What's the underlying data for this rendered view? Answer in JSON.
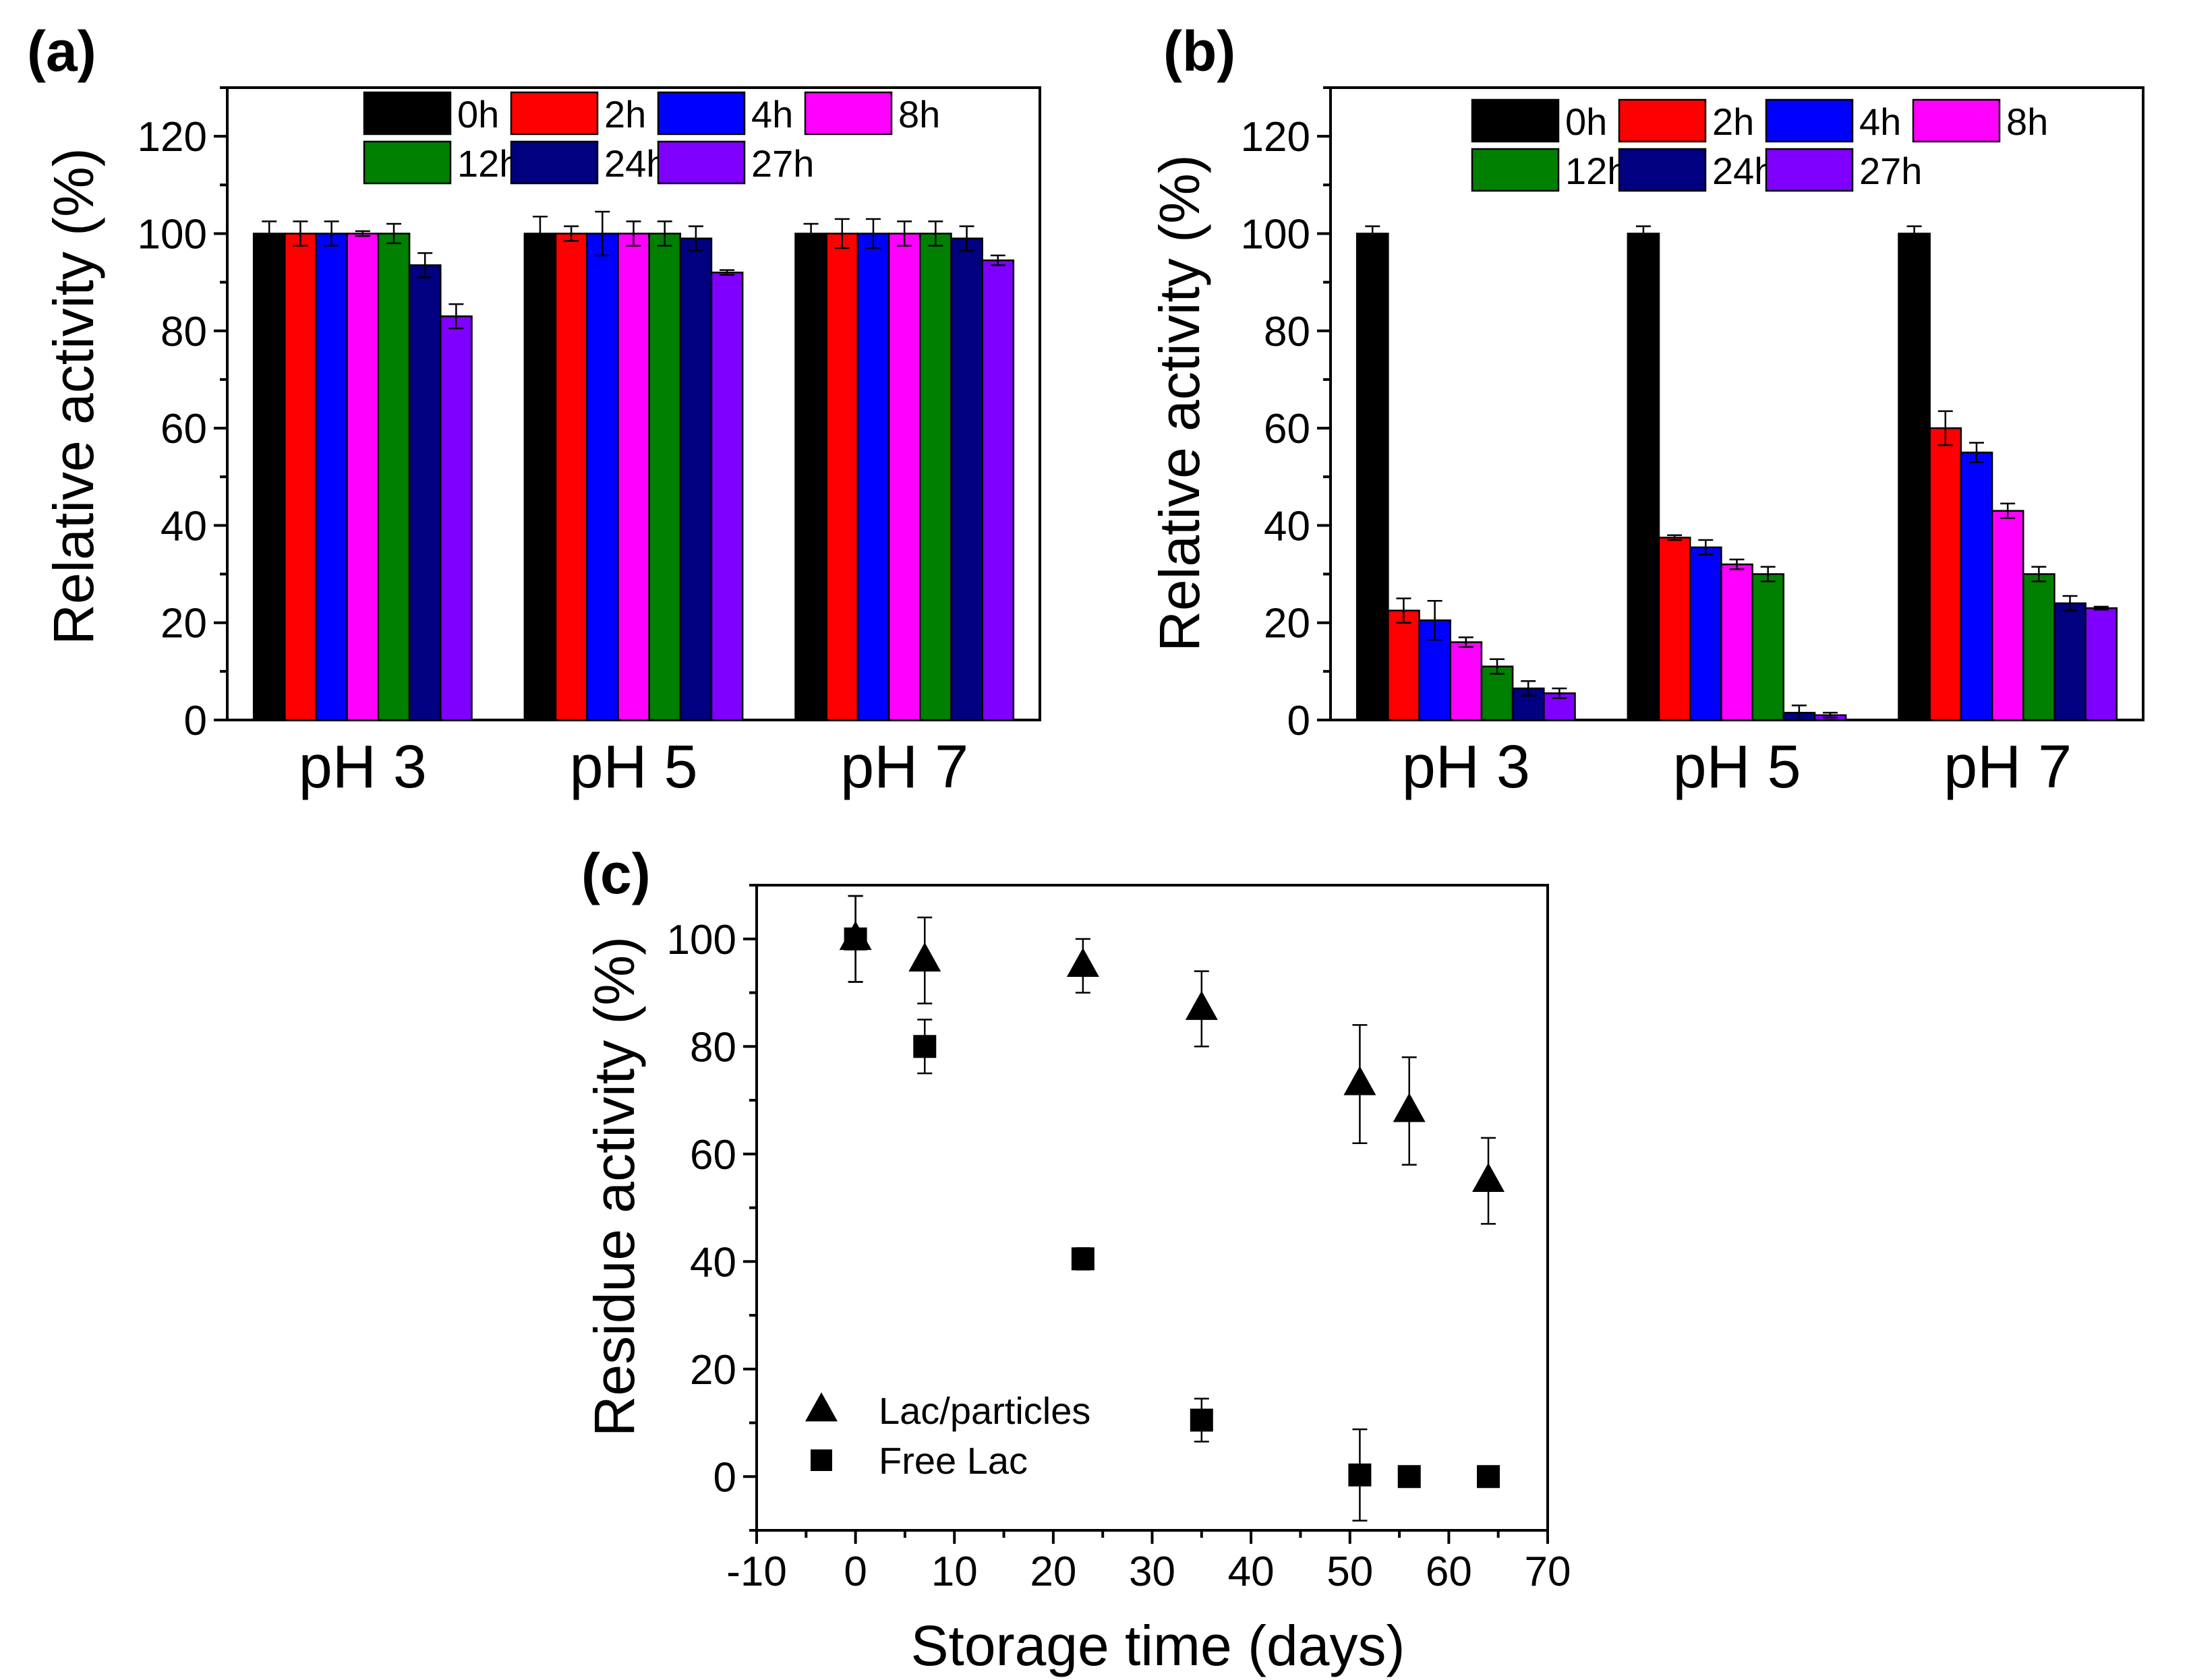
{
  "colors": {
    "0h": "#000000",
    "2h": "#ff0000",
    "4h": "#0000ff",
    "8h": "#ff00ff",
    "12h": "#008000",
    "24h": "#000080",
    "27h": "#8000ff"
  },
  "chart_data": [
    {
      "panel": "(a)",
      "type": "bar",
      "ylabel": "Relative activity (%)",
      "xlabel": "",
      "ylim": [
        0,
        130
      ],
      "yticks": [
        0,
        20,
        40,
        60,
        80,
        100,
        120
      ],
      "categories": [
        "pH 3",
        "pH 5",
        "pH 7"
      ],
      "legend": [
        "0h",
        "2h",
        "4h",
        "8h",
        "12h",
        "24h",
        "27h"
      ],
      "series": [
        {
          "name": "0h",
          "values": [
            100,
            100,
            100
          ],
          "errors": [
            2.5,
            3.5,
            2.0
          ]
        },
        {
          "name": "2h",
          "values": [
            100,
            100,
            100
          ],
          "errors": [
            2.5,
            1.5,
            3.0
          ]
        },
        {
          "name": "4h",
          "values": [
            100,
            100,
            100
          ],
          "errors": [
            2.5,
            4.5,
            3.0
          ]
        },
        {
          "name": "8h",
          "values": [
            100,
            100,
            100
          ],
          "errors": [
            0.5,
            2.5,
            2.5
          ]
        },
        {
          "name": "12h",
          "values": [
            100,
            100,
            100
          ],
          "errors": [
            2.0,
            2.5,
            2.5
          ]
        },
        {
          "name": "24h",
          "values": [
            93.5,
            99,
            99
          ],
          "errors": [
            2.5,
            2.5,
            2.5
          ]
        },
        {
          "name": "27h",
          "values": [
            83,
            92,
            94.5
          ],
          "errors": [
            2.5,
            0.5,
            1.0
          ]
        }
      ]
    },
    {
      "panel": "(b)",
      "type": "bar",
      "ylabel": "Relative activity (%)",
      "xlabel": "",
      "ylim": [
        0,
        130
      ],
      "yticks": [
        0,
        20,
        40,
        60,
        80,
        100,
        120
      ],
      "categories": [
        "pH 3",
        "pH 5",
        "pH 7"
      ],
      "legend": [
        "0h",
        "2h",
        "4h",
        "8h",
        "12h",
        "24h",
        "27h"
      ],
      "series": [
        {
          "name": "0h",
          "values": [
            100,
            100,
            100
          ],
          "errors": [
            1.5,
            1.5,
            1.5
          ]
        },
        {
          "name": "2h",
          "values": [
            22.5,
            37.5,
            60
          ],
          "errors": [
            2.5,
            0.5,
            3.5
          ]
        },
        {
          "name": "4h",
          "values": [
            20.5,
            35.5,
            55
          ],
          "errors": [
            4.0,
            1.5,
            2.0
          ]
        },
        {
          "name": "8h",
          "values": [
            16,
            32,
            43
          ],
          "errors": [
            1.0,
            1.0,
            1.5
          ]
        },
        {
          "name": "12h",
          "values": [
            11,
            30,
            30
          ],
          "errors": [
            1.5,
            1.5,
            1.5
          ]
        },
        {
          "name": "24h",
          "values": [
            6.5,
            1.5,
            24
          ],
          "errors": [
            1.5,
            1.5,
            1.5
          ]
        },
        {
          "name": "27h",
          "values": [
            5.5,
            1,
            23
          ],
          "errors": [
            1.0,
            0.5,
            0.3
          ]
        }
      ]
    },
    {
      "panel": "(c)",
      "type": "scatter",
      "xlabel": "Storage time (days)",
      "ylabel": "Residue activity (%)",
      "xlim": [
        -10,
        70
      ],
      "ylim": [
        -10,
        110
      ],
      "xticks": [
        -10,
        0,
        10,
        20,
        30,
        40,
        50,
        60,
        70
      ],
      "yticks": [
        0,
        20,
        40,
        60,
        80,
        100
      ],
      "series": [
        {
          "name": "Lac/particles",
          "marker": "triangle",
          "x": [
            0,
            7,
            23,
            35,
            51,
            56,
            64
          ],
          "y": [
            100,
            96,
            95,
            87,
            73,
            68,
            55
          ],
          "errors": [
            8,
            8,
            5,
            7,
            11,
            10,
            8
          ]
        },
        {
          "name": "Free Lac",
          "marker": "square",
          "x": [
            0,
            7,
            23,
            35,
            51,
            56,
            64
          ],
          "y": [
            100,
            80,
            40.5,
            10.5,
            0.3,
            0,
            0
          ],
          "errors": [
            8,
            5,
            2,
            4,
            8.5,
            0,
            0
          ]
        }
      ]
    }
  ]
}
